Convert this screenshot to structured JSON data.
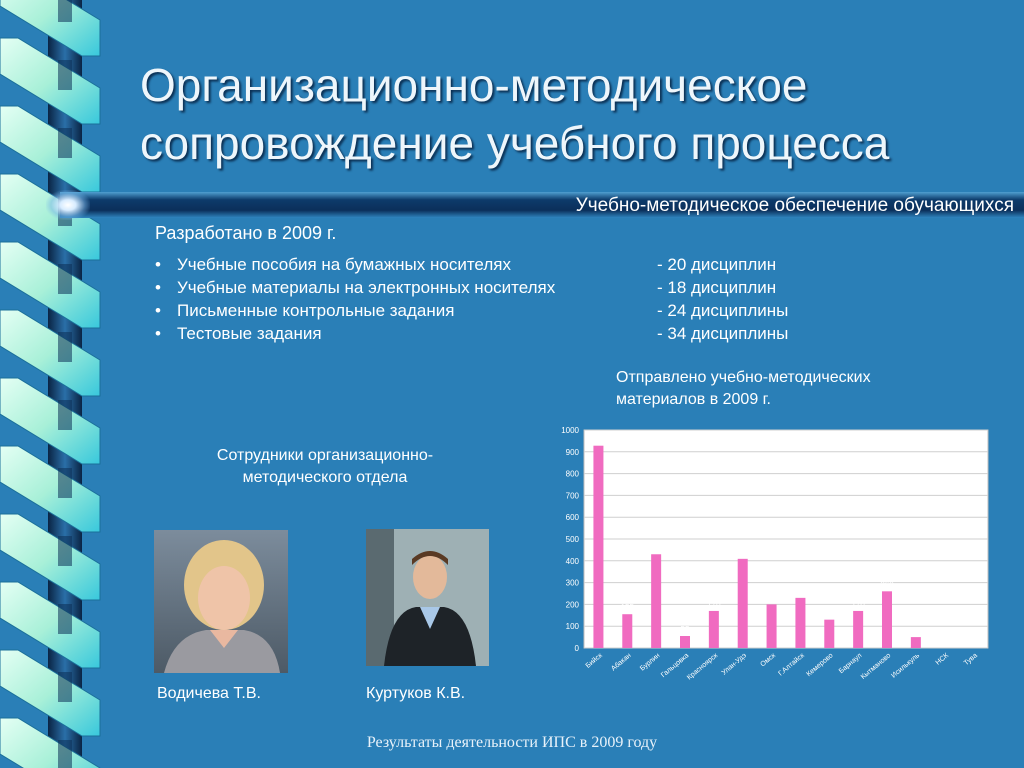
{
  "slide": {
    "title_lines": [
      "Организационно-методическое",
      "сопровождение учебного процесса"
    ],
    "subtitle": "Учебно-методическое обеспечение обучающихся",
    "developed_label": "Разработано в 2009 г.",
    "items": [
      {
        "bullet": "•",
        "name": "Учебные пособия на бумажных носителях",
        "count": "-  20 дисциплин"
      },
      {
        "bullet": "•",
        "name": "Учебные материалы на электронных носителях",
        "count": "- 18 дисциплин"
      },
      {
        "bullet": "•",
        "name": "Письменные контрольные задания",
        "count": "- 24 дисциплины"
      },
      {
        "bullet": "•",
        "name": "Тестовые задания",
        "count": "- 34 дисциплины"
      }
    ],
    "chart_title_lines": [
      "Отправлено учебно-методических",
      "материалов  в 2009 г."
    ],
    "staff_title_lines": [
      "Сотрудники организационно-",
      "методического отдела"
    ],
    "staff": [
      {
        "name": "Водичева Т.В."
      },
      {
        "name": "Куртуков К.В."
      }
    ],
    "footer": "Результаты деятельности ИПС в 2009 году"
  },
  "colors": {
    "background": "#2a7fb7",
    "bar_fill": "#f06bc0",
    "chart_bg": "#ffffff",
    "ribbon_light": "#a8f0d8",
    "ribbon_dark": "#0d2f55"
  },
  "chart_data": {
    "type": "bar",
    "categories": [
      "Бийск",
      "Абакан",
      "Бурлин",
      "Гальцовка",
      "Красноярск",
      "Улан-Удэ",
      "Омск",
      "Г.Алтайск",
      "Кемерово",
      "Барнаул",
      "Кытманово",
      "Исилькуль",
      "НСК",
      "Тува"
    ],
    "values": [
      928,
      155,
      430,
      55,
      170,
      409,
      200,
      230,
      130,
      170,
      260,
      50,
      0,
      0
    ],
    "ylim": [
      0,
      1000
    ],
    "yticks": [
      "0",
      "100",
      "200",
      "300",
      "400",
      "500",
      "600",
      "700",
      "800",
      "900",
      "1000"
    ],
    "grid": true,
    "legend": "none",
    "data_labels": true
  }
}
